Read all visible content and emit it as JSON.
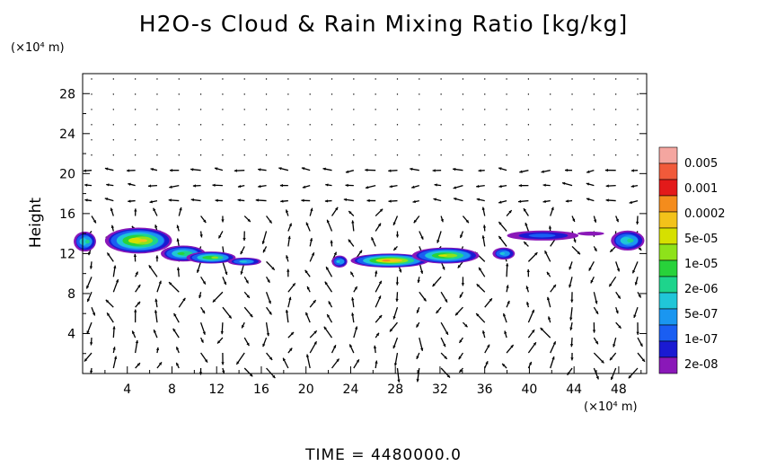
{
  "title": "H2O-s Cloud & Rain Mixing Ratio [kg/kg]",
  "time_label": "TIME  =  4480000.0",
  "chart_data": {
    "type": "heatmap",
    "title": "H2O-s Cloud & Rain Mixing Ratio [kg/kg]",
    "xlabel": "",
    "xunit": "(×10⁴ m)",
    "ylabel": "Height",
    "yunit": "(×10⁴ m)",
    "xlim": [
      0,
      50.5
    ],
    "ylim": [
      0,
      30
    ],
    "xticks": [
      4,
      8,
      12,
      16,
      20,
      24,
      28,
      32,
      36,
      40,
      44,
      48
    ],
    "yticks": [
      4,
      8,
      12,
      16,
      20,
      24,
      28
    ],
    "colorbar": {
      "labels": [
        "0.005",
        "0.001",
        "0.0002",
        "5e-05",
        "1e-05",
        "2e-06",
        "5e-07",
        "1e-07",
        "2e-08"
      ],
      "colors": [
        "#f4a6a0",
        "#f15a3a",
        "#e31a1a",
        "#f48c1c",
        "#f3c21a",
        "#d6e000",
        "#8ee21a",
        "#28d23a",
        "#1ed48c",
        "#20c6d8",
        "#1a96f0",
        "#1a5ef2",
        "#1a1ad2",
        "#8a18b8"
      ]
    },
    "cloud_regions": [
      {
        "x": 0.2,
        "y": 13.2,
        "rx": 1.0,
        "ry": 1.0,
        "level": 5
      },
      {
        "x": 5.0,
        "y": 13.3,
        "rx": 3.0,
        "ry": 1.3,
        "level": 9
      },
      {
        "x": 9.0,
        "y": 12.0,
        "rx": 2.0,
        "ry": 0.8,
        "level": 6
      },
      {
        "x": 11.5,
        "y": 11.6,
        "rx": 2.2,
        "ry": 0.6,
        "level": 7
      },
      {
        "x": 14.5,
        "y": 11.2,
        "rx": 1.5,
        "ry": 0.4,
        "level": 4
      },
      {
        "x": 23.0,
        "y": 11.2,
        "rx": 0.7,
        "ry": 0.6,
        "level": 4
      },
      {
        "x": 27.5,
        "y": 11.3,
        "rx": 3.5,
        "ry": 0.7,
        "level": 10
      },
      {
        "x": 32.5,
        "y": 11.8,
        "rx": 3.0,
        "ry": 0.8,
        "level": 8
      },
      {
        "x": 37.7,
        "y": 12.0,
        "rx": 1.0,
        "ry": 0.6,
        "level": 4
      },
      {
        "x": 41.2,
        "y": 13.8,
        "rx": 3.2,
        "ry": 0.5,
        "level": 2
      },
      {
        "x": 45.5,
        "y": 14.0,
        "rx": 1.2,
        "ry": 0.2,
        "level": 0
      },
      {
        "x": 48.8,
        "y": 13.3,
        "rx": 1.5,
        "ry": 1.0,
        "level": 5
      }
    ],
    "wind_field": {
      "x_count": 26,
      "y_count": 20,
      "max_speed": 1
    }
  }
}
